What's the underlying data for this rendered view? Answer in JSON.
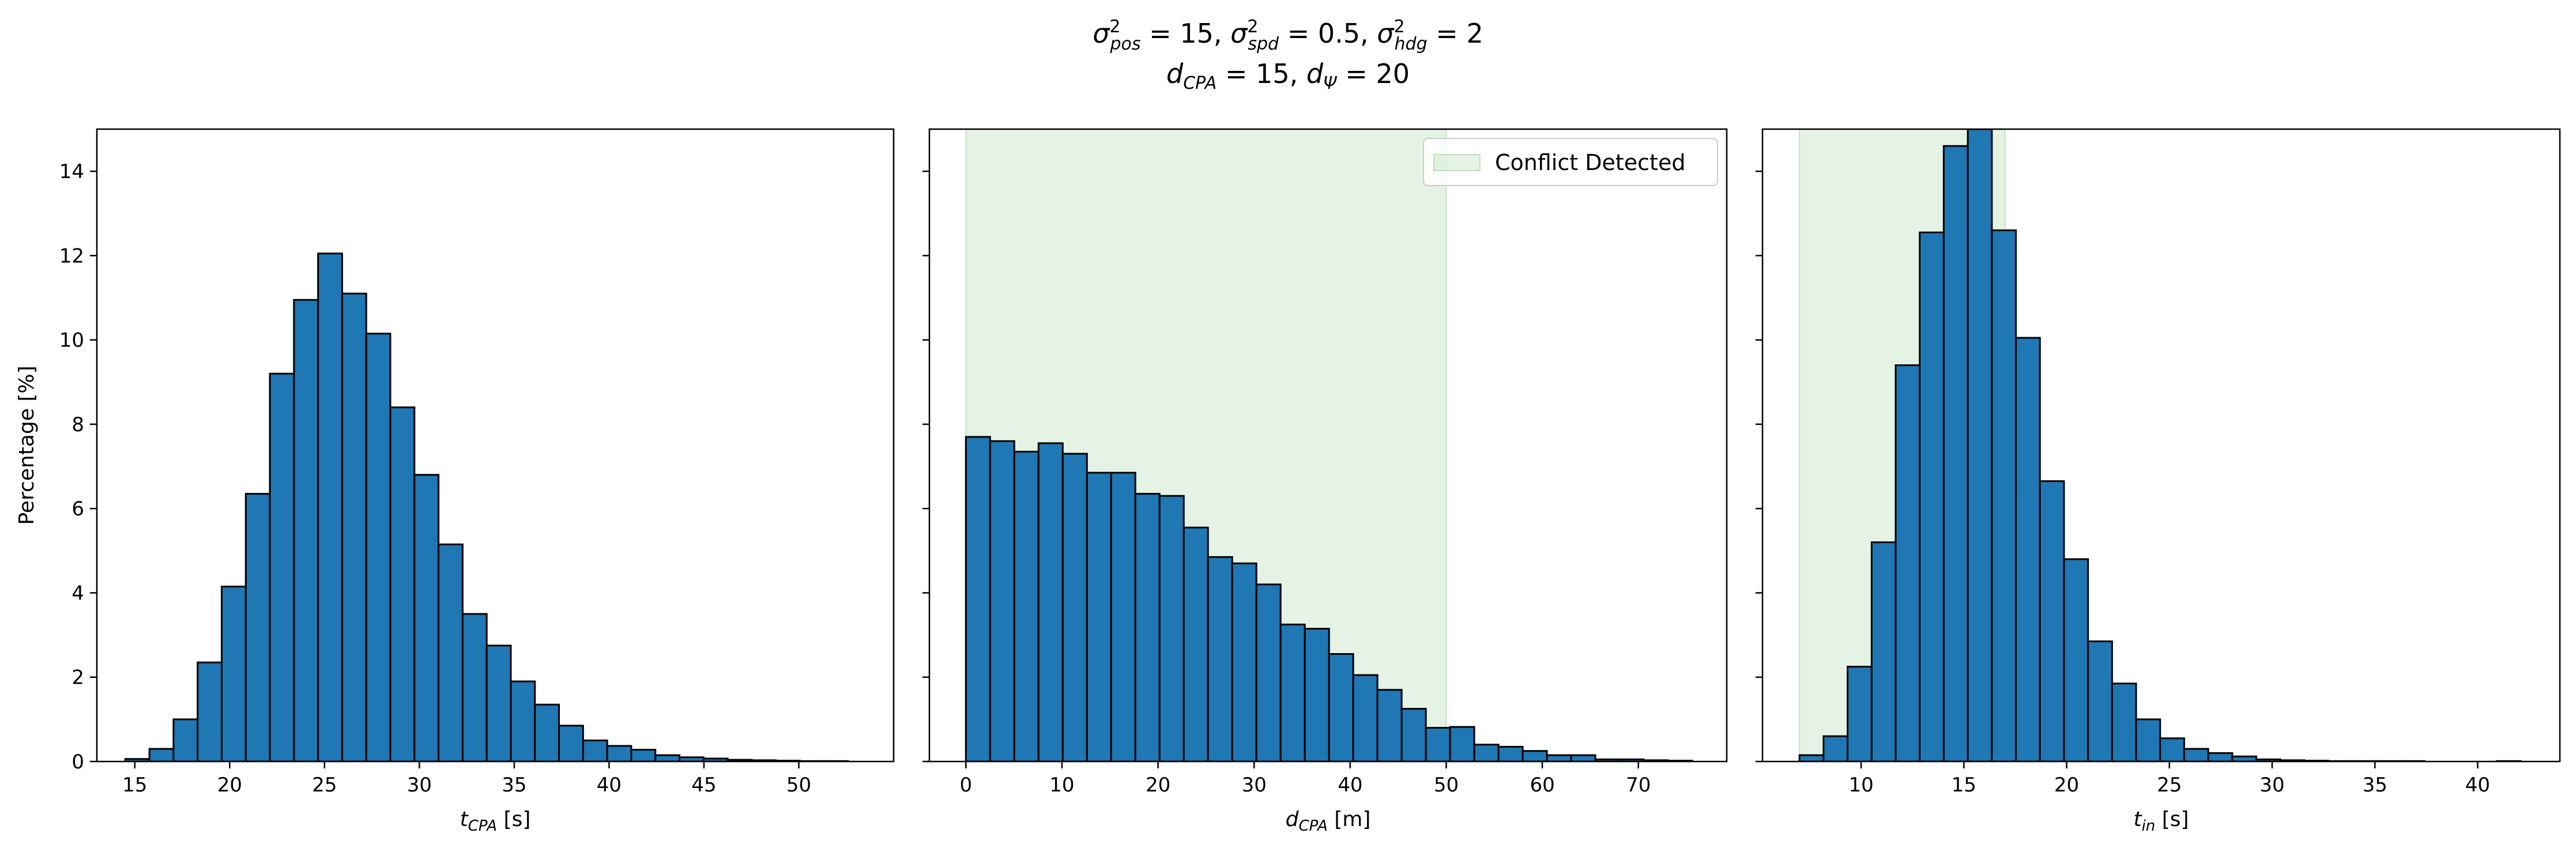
{
  "figure": {
    "title_line1": "σ²pos = 15, σ²spd = 0.5, σ²hdg = 2",
    "title_line2": "dCPA = 15, dΨ = 20",
    "title_parts": {
      "sigma_pos": {
        "sym": "σ",
        "sup": "2",
        "sub": "pos",
        "eq": " = 15,"
      },
      "sigma_spd": {
        "sym": "σ",
        "sup": "2",
        "sub": "spd",
        "eq": " = 0.5,"
      },
      "sigma_hdg": {
        "sym": "σ",
        "sup": "2",
        "sub": "hdg",
        "eq": " = 2"
      },
      "d_cpa": {
        "sym": "d",
        "sub": "CPA",
        "eq": " = 15,"
      },
      "d_psi": {
        "sym": "d",
        "sub": "Ψ",
        "eq": " = 20"
      }
    },
    "colors": {
      "bar": "#1f77b4",
      "edge": "#000000",
      "conflict": "#2ca02c"
    }
  },
  "chart_data": [
    {
      "type": "bar",
      "xlabel_sym": "t",
      "xlabel_sub": "CPA",
      "xlabel_unit": " [s]",
      "ylabel": "Percentage [%]",
      "xlim": [
        13,
        55
      ],
      "ylim": [
        0,
        15
      ],
      "xticks": [
        15,
        20,
        25,
        30,
        35,
        40,
        45,
        50
      ],
      "yticks": [
        0,
        2,
        4,
        6,
        8,
        10,
        12,
        14
      ],
      "bin_start": 14.5,
      "bin_width": 1.27,
      "values": [
        0.06,
        0.3,
        1.0,
        2.35,
        4.15,
        6.35,
        9.2,
        10.95,
        12.05,
        11.1,
        10.15,
        8.4,
        6.8,
        5.15,
        3.5,
        2.75,
        1.9,
        1.35,
        0.85,
        0.5,
        0.37,
        0.28,
        0.15,
        0.1,
        0.07,
        0.04,
        0.03,
        0.02,
        0.01,
        0.01
      ]
    },
    {
      "type": "bar",
      "xlabel_sym": "d",
      "xlabel_sub": "CPA",
      "xlabel_unit": " [m]",
      "xlim": [
        -3.8,
        79.2
      ],
      "ylim": [
        0,
        15
      ],
      "xticks": [
        0,
        10,
        20,
        30,
        40,
        50,
        60,
        70
      ],
      "yticks": [
        0,
        2,
        4,
        6,
        8,
        10,
        12,
        14
      ],
      "bin_start": 0,
      "bin_width": 2.52,
      "values": [
        7.7,
        7.6,
        7.35,
        7.55,
        7.3,
        6.85,
        6.85,
        6.35,
        6.3,
        5.55,
        4.85,
        4.7,
        4.2,
        3.25,
        3.15,
        2.55,
        2.05,
        1.7,
        1.25,
        0.8,
        0.82,
        0.4,
        0.35,
        0.25,
        0.15,
        0.15,
        0.05,
        0.05,
        0.03,
        0.02
      ],
      "conflict_region": [
        0,
        50
      ],
      "legend": {
        "label": "Conflict Detected",
        "position": "top-right"
      }
    },
    {
      "type": "bar",
      "xlabel_sym": "t",
      "xlabel_sub": "in",
      "xlabel_unit": " [s]",
      "xlim": [
        5.2,
        44.0
      ],
      "ylim": [
        0,
        15
      ],
      "xticks": [
        10,
        15,
        20,
        25,
        30,
        35,
        40
      ],
      "yticks": [
        0,
        2,
        4,
        6,
        8,
        10,
        12,
        14
      ],
      "bin_start": 7.0,
      "bin_width": 1.17,
      "values": [
        0.15,
        0.6,
        2.25,
        5.2,
        9.4,
        12.55,
        14.6,
        15.0,
        12.6,
        10.05,
        6.65,
        4.8,
        2.85,
        1.85,
        1.0,
        0.55,
        0.3,
        0.2,
        0.12,
        0.05,
        0.03,
        0.02,
        0.01,
        0.01,
        0.01,
        0.01,
        0.0,
        0.0,
        0.0,
        0.01
      ],
      "conflict_region": [
        7.0,
        17.0
      ]
    }
  ]
}
